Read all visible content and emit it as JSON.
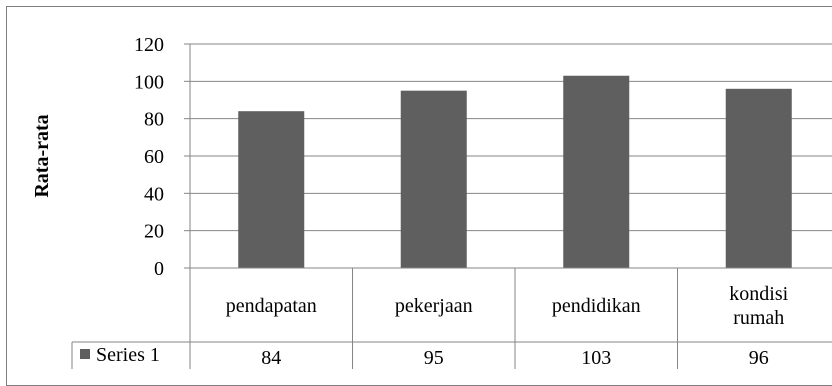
{
  "chart_data": {
    "type": "bar",
    "categories": [
      "pendapatan",
      "pekerjaan",
      "pendidikan",
      "kondisi rumah"
    ],
    "category_lines": [
      [
        "pendapatan"
      ],
      [
        "pekerjaan"
      ],
      [
        "pendidikan"
      ],
      [
        "kondisi",
        "rumah"
      ]
    ],
    "series": [
      {
        "name": "Series 1",
        "values": [
          84,
          95,
          103,
          96
        ]
      }
    ],
    "title": "",
    "xlabel": "",
    "ylabel": "Rata-rata",
    "ylim": [
      0,
      120
    ],
    "yticks": [
      "0",
      "20",
      "40",
      "60",
      "80",
      "100",
      "120"
    ],
    "grid": true,
    "legend": "data-table-left",
    "colors": {
      "bar": "#5f5f5f",
      "grid": "#868686",
      "axis": "#868686"
    }
  }
}
